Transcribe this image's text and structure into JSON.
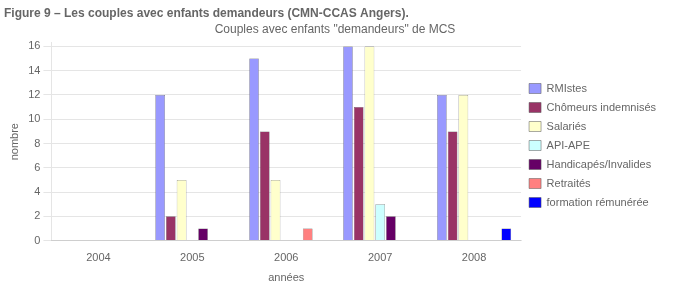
{
  "chart_data": {
    "type": "bar",
    "title": "Figure 9 – Les couples avec enfants demandeurs (CMN-CCAS Angers).",
    "subtitle": "Couples avec enfants \"demandeurs\" de MCS",
    "xlabel": "années",
    "ylabel": "nombre",
    "categories": [
      "2004",
      "2005",
      "2006",
      "2007",
      "2008"
    ],
    "series": [
      {
        "name": "RMIstes",
        "color": "#9999FF",
        "values": [
          0,
          12,
          15,
          16,
          12
        ]
      },
      {
        "name": "Chômeurs indemnisés",
        "color": "#993366",
        "values": [
          0,
          2,
          9,
          11,
          9
        ]
      },
      {
        "name": "Salariés",
        "color": "#FFFFCC",
        "values": [
          0,
          5,
          5,
          16,
          12
        ]
      },
      {
        "name": "API-APE",
        "color": "#CCFFFF",
        "values": [
          0,
          0,
          0,
          3,
          0
        ]
      },
      {
        "name": "Handicapés/Invalides",
        "color": "#660066",
        "values": [
          0,
          1,
          0,
          2,
          0
        ]
      },
      {
        "name": "Retraités",
        "color": "#FF8080",
        "values": [
          0,
          0,
          1,
          0,
          0
        ]
      },
      {
        "name": "formation rémunérée",
        "color": "#0000FF",
        "values": [
          0,
          0,
          0,
          0,
          1
        ]
      }
    ],
    "ylim": [
      0,
      16.3
    ],
    "yticks": [
      0,
      2,
      4,
      6,
      8,
      10,
      12,
      14,
      16
    ],
    "grid": true,
    "legend": "right"
  }
}
